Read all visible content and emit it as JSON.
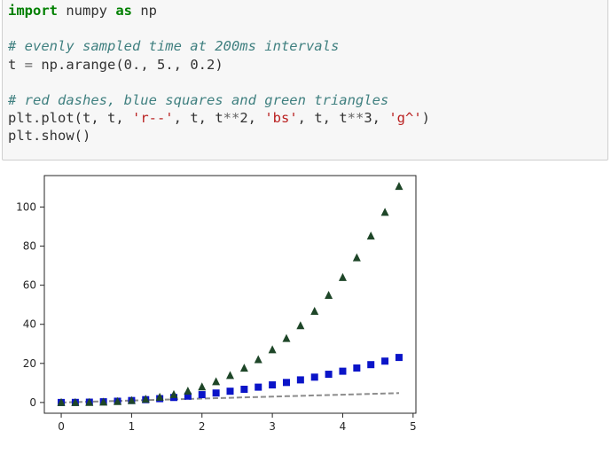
{
  "code_cell": {
    "lines": [
      [
        {
          "t": "import",
          "c": "kw"
        },
        {
          "t": " numpy ",
          "c": ""
        },
        {
          "t": "as",
          "c": "kw"
        },
        {
          "t": " np",
          "c": ""
        }
      ],
      [
        {
          "t": "",
          "c": ""
        }
      ],
      [
        {
          "t": "# evenly sampled time at 200ms intervals",
          "c": "cm"
        }
      ],
      [
        {
          "t": "t ",
          "c": ""
        },
        {
          "t": "=",
          "c": "op"
        },
        {
          "t": " np.arange(0., 5., 0.2)",
          "c": ""
        }
      ],
      [
        {
          "t": "",
          "c": ""
        }
      ],
      [
        {
          "t": "# red dashes, blue squares and green triangles",
          "c": "cm"
        }
      ],
      [
        {
          "t": "plt.plot(t, t, ",
          "c": ""
        },
        {
          "t": "'r--'",
          "c": "st"
        },
        {
          "t": ", t, t",
          "c": ""
        },
        {
          "t": "**",
          "c": "op"
        },
        {
          "t": "2, ",
          "c": ""
        },
        {
          "t": "'bs'",
          "c": "st"
        },
        {
          "t": ", t, t",
          "c": ""
        },
        {
          "t": "**",
          "c": "op"
        },
        {
          "t": "3, ",
          "c": ""
        },
        {
          "t": "'g^'",
          "c": "st"
        },
        {
          "t": ")",
          "c": ""
        }
      ],
      [
        {
          "t": "plt.show()",
          "c": ""
        }
      ]
    ]
  },
  "colors": {
    "line_series": "#8c8c8c",
    "square_series": "#0a14c8",
    "triangle_series": "#1e4628"
  },
  "chart_data": {
    "type": "scatter",
    "x": [
      0,
      0.2,
      0.4,
      0.6,
      0.8,
      1.0,
      1.2,
      1.4,
      1.6,
      1.8,
      2.0,
      2.2,
      2.4,
      2.6,
      2.8,
      3.0,
      3.2,
      3.4,
      3.6,
      3.8,
      4.0,
      4.2,
      4.4,
      4.6,
      4.8
    ],
    "series": [
      {
        "style": "dashed-line",
        "values": [
          0,
          0.2,
          0.4,
          0.6,
          0.8,
          1.0,
          1.2,
          1.4,
          1.6,
          1.8,
          2.0,
          2.2,
          2.4,
          2.6,
          2.8,
          3.0,
          3.2,
          3.4,
          3.6,
          3.8,
          4.0,
          4.2,
          4.4,
          4.6,
          4.8
        ]
      },
      {
        "style": "square",
        "values": [
          0,
          0.04,
          0.16,
          0.36,
          0.64,
          1.0,
          1.44,
          1.96,
          2.56,
          3.24,
          4.0,
          4.84,
          5.76,
          6.76,
          7.84,
          9.0,
          10.24,
          11.56,
          12.96,
          14.44,
          16.0,
          17.64,
          19.36,
          21.16,
          23.04
        ]
      },
      {
        "style": "triangle",
        "values": [
          0,
          0.008,
          0.064,
          0.216,
          0.512,
          1.0,
          1.728,
          2.744,
          4.096,
          5.832,
          8.0,
          10.648,
          13.824,
          17.576,
          21.952,
          27.0,
          32.768,
          39.304,
          46.656,
          54.872,
          64.0,
          74.088,
          85.184,
          97.336,
          110.592
        ]
      }
    ],
    "xticks": [
      "0",
      "1",
      "2",
      "3",
      "4",
      "5"
    ],
    "yticks": [
      "0",
      "20",
      "40",
      "60",
      "80",
      "100"
    ],
    "xlim": [
      -0.24,
      5.04
    ],
    "ylim": [
      -5.5,
      116.1
    ],
    "grid": false
  }
}
